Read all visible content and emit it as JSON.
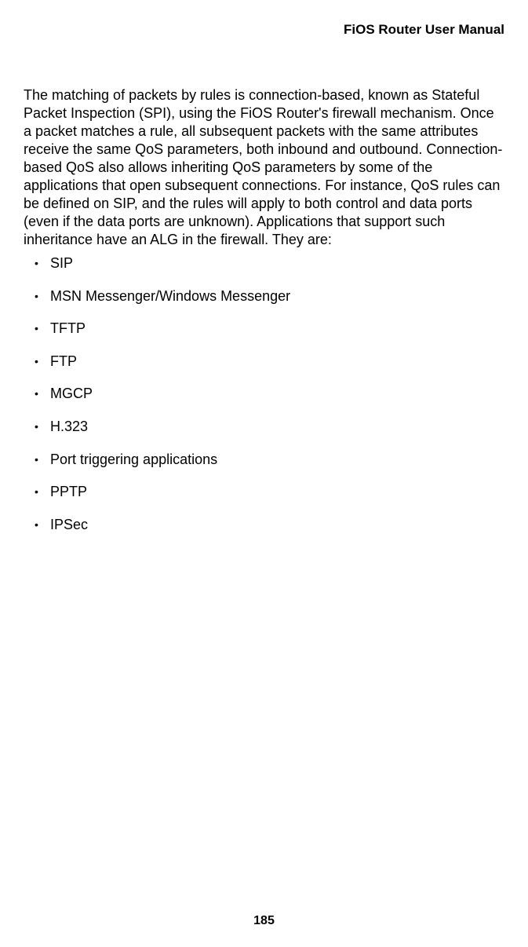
{
  "header": {
    "title": "FiOS Router User Manual"
  },
  "body": {
    "paragraph": "The matching of packets by rules is connection-based, known as Stateful Packet Inspection (SPI), using the FiOS Router's firewall mechanism. Once a packet matches a rule, all subsequent packets with the same attributes receive the same QoS parameters, both inbound and outbound. Connection-based QoS also allows inheriting QoS parameters by some of the applications that open subsequent connections. For instance, QoS rules can be defined on SIP, and the rules will apply to both control and data ports (even if the data ports are unknown). Applications that support such inheritance have an ALG in the firewall. They are:"
  },
  "list": {
    "items": [
      "SIP",
      "MSN Messenger/Windows Messenger",
      "TFTP",
      "FTP",
      "MGCP",
      "H.323",
      "Port triggering applications",
      "PPTP",
      "IPSec"
    ]
  },
  "footer": {
    "page_number": "185"
  },
  "styles": {
    "text_color": "#000000",
    "background_color": "#ffffff",
    "header_fontsize": 17,
    "body_fontsize": 18,
    "pagenum_fontsize": 16
  }
}
